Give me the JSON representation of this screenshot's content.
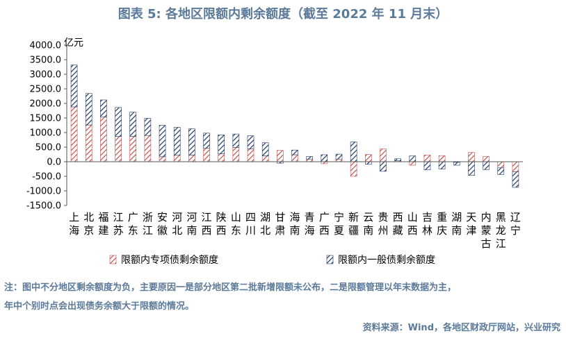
{
  "title": "图表 5:  各地区限额内剩余额度（截至 2022 年 11 月末）",
  "note_line1": "注：图中不分地区剩余额度为负，主要原因一是部分地区第二批新增限额未公布，二是限额管理以年末数据为主，",
  "note_line2": "年中个别时点会出现债务余额大于限额的情况。",
  "source": "资料来源：Wind，各地区财政厅网站，兴业研究",
  "colors": {
    "special": "#c0504d",
    "general": "#1f3864",
    "title": "#5b7a99"
  },
  "chart_data": {
    "type": "bar",
    "stacked": true,
    "unit": "亿元",
    "ylim": [
      -1500,
      4000
    ],
    "yticks": [
      "4000.0",
      "3500.0",
      "3000.0",
      "2500.0",
      "2000.0",
      "1500.0",
      "1000.0",
      "500.0",
      "0.0",
      "-500.0",
      "-1000.0",
      "-1500.0"
    ],
    "categories": [
      "上海",
      "北京",
      "福建",
      "江苏",
      "广东",
      "浙江",
      "安徽",
      "河北",
      "河南",
      "江西",
      "陕西",
      "山东",
      "四川",
      "湖北",
      "甘肃",
      "海南",
      "青海",
      "广西",
      "宁夏",
      "新疆",
      "云南",
      "贵州",
      "西藏",
      "山西",
      "吉林",
      "重庆",
      "湖南",
      "天津",
      "内蒙古",
      "黑龙江",
      "辽宁"
    ],
    "series": [
      {
        "name": "限额内专项债剩余额度",
        "values": [
          1880,
          1260,
          1530,
          870,
          870,
          900,
          170,
          220,
          230,
          460,
          270,
          490,
          440,
          200,
          390,
          240,
          90,
          -70,
          90,
          -500,
          250,
          440,
          30,
          -120,
          230,
          210,
          -20,
          320,
          180,
          -210,
          -350
        ]
      },
      {
        "name": "限额内一般债剩余额度",
        "values": [
          1440,
          1080,
          590,
          990,
          830,
          590,
          1080,
          960,
          900,
          520,
          650,
          460,
          450,
          450,
          -50,
          160,
          90,
          240,
          170,
          680,
          -90,
          -330,
          70,
          200,
          -280,
          -250,
          -100,
          -470,
          -270,
          -230,
          -530
        ]
      }
    ],
    "legend_position": "bottom"
  }
}
